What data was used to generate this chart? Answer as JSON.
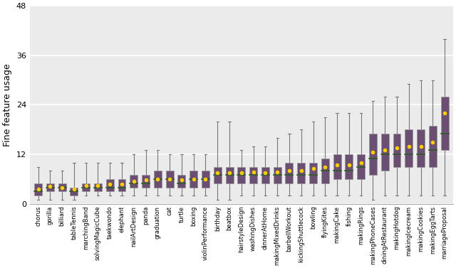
{
  "categories": [
    "chorus",
    "gorilla",
    "billiard",
    "tableTennis",
    "marchingBand",
    "solvingMagicCube",
    "taekwondo",
    "elephant",
    "nailArtDesign",
    "panda",
    "graduation",
    "cat",
    "turtle",
    "boxing",
    "violinPerformance",
    "birthday",
    "beatbox",
    "hairstyleDesign",
    "washingDishes",
    "dinnerAtHome",
    "makingMixedDrinks",
    "barbellWorkout",
    "kickingShuttlecock",
    "bowling",
    "flyingKites",
    "makingCake",
    "fishing",
    "makingRings",
    "makingPhoneCases",
    "diningAtRestaurant",
    "makingHotdog",
    "makingIcecream",
    "makingCookies",
    "makingEggTarts",
    "marriageProposal"
  ],
  "box_data": [
    {
      "min": 1,
      "q1": 2,
      "median": 3,
      "q3": 5,
      "max": 9,
      "mean": 3.5
    },
    {
      "min": 1,
      "q1": 3,
      "median": 4,
      "q3": 5,
      "max": 8,
      "mean": 4.2
    },
    {
      "min": 1,
      "q1": 3,
      "median": 4,
      "q3": 5,
      "max": 8,
      "mean": 4.0
    },
    {
      "min": 1,
      "q1": 2,
      "median": 3,
      "q3": 4,
      "max": 10,
      "mean": 3.5
    },
    {
      "min": 2,
      "q1": 3,
      "median": 4,
      "q3": 5,
      "max": 10,
      "mean": 4.5
    },
    {
      "min": 2,
      "q1": 3,
      "median": 4,
      "q3": 5,
      "max": 10,
      "mean": 4.5
    },
    {
      "min": 2,
      "q1": 3,
      "median": 4,
      "q3": 6,
      "max": 10,
      "mean": 4.8
    },
    {
      "min": 2,
      "q1": 3,
      "median": 4,
      "q3": 6,
      "max": 10,
      "mean": 4.8
    },
    {
      "min": 2,
      "q1": 4,
      "median": 5,
      "q3": 7,
      "max": 12,
      "mean": 5.5
    },
    {
      "min": 2,
      "q1": 4,
      "median": 5,
      "q3": 7,
      "max": 13,
      "mean": 5.8
    },
    {
      "min": 2,
      "q1": 4,
      "median": 6,
      "q3": 8,
      "max": 13,
      "mean": 6.0
    },
    {
      "min": 2,
      "q1": 4,
      "median": 6,
      "q3": 8,
      "max": 12,
      "mean": 6.0
    },
    {
      "min": 2,
      "q1": 4,
      "median": 5,
      "q3": 7,
      "max": 12,
      "mean": 5.8
    },
    {
      "min": 2,
      "q1": 4,
      "median": 6,
      "q3": 8,
      "max": 12,
      "mean": 6.0
    },
    {
      "min": 2,
      "q1": 4,
      "median": 6,
      "q3": 8,
      "max": 12,
      "mean": 6.0
    },
    {
      "min": 1,
      "q1": 5,
      "median": 7,
      "q3": 9,
      "max": 20,
      "mean": 7.5
    },
    {
      "min": 1,
      "q1": 5,
      "median": 7,
      "q3": 9,
      "max": 20,
      "mean": 7.5
    },
    {
      "min": 2,
      "q1": 5,
      "median": 7,
      "q3": 9,
      "max": 13,
      "mean": 7.5
    },
    {
      "min": 2,
      "q1": 5,
      "median": 7,
      "q3": 9,
      "max": 14,
      "mean": 7.8
    },
    {
      "min": 2,
      "q1": 5,
      "median": 7,
      "q3": 9,
      "max": 14,
      "mean": 7.5
    },
    {
      "min": 2,
      "q1": 5,
      "median": 7,
      "q3": 9,
      "max": 16,
      "mean": 7.8
    },
    {
      "min": 2,
      "q1": 5,
      "median": 7,
      "q3": 10,
      "max": 17,
      "mean": 8.0
    },
    {
      "min": 2,
      "q1": 5,
      "median": 7,
      "q3": 10,
      "max": 18,
      "mean": 8.0
    },
    {
      "min": 2,
      "q1": 5,
      "median": 7,
      "q3": 10,
      "max": 20,
      "mean": 8.5
    },
    {
      "min": 2,
      "q1": 5,
      "median": 8,
      "q3": 11,
      "max": 21,
      "mean": 9.0
    },
    {
      "min": 2,
      "q1": 6,
      "median": 8,
      "q3": 12,
      "max": 22,
      "mean": 9.5
    },
    {
      "min": 2,
      "q1": 6,
      "median": 8,
      "q3": 12,
      "max": 22,
      "mean": 9.5
    },
    {
      "min": 2,
      "q1": 6,
      "median": 9,
      "q3": 12,
      "max": 22,
      "mean": 10.0
    },
    {
      "min": 1,
      "q1": 7,
      "median": 11,
      "q3": 17,
      "max": 25,
      "mean": 12.5
    },
    {
      "min": 2,
      "q1": 8,
      "median": 12,
      "q3": 17,
      "max": 26,
      "mean": 13.0
    },
    {
      "min": 2,
      "q1": 9,
      "median": 12,
      "q3": 17,
      "max": 26,
      "mean": 13.5
    },
    {
      "min": 2,
      "q1": 9,
      "median": 12,
      "q3": 18,
      "max": 29,
      "mean": 14.0
    },
    {
      "min": 2,
      "q1": 9,
      "median": 12,
      "q3": 18,
      "max": 30,
      "mean": 14.0
    },
    {
      "min": 2,
      "q1": 9,
      "median": 13,
      "q3": 19,
      "max": 30,
      "mean": 15.0
    },
    {
      "min": 2,
      "q1": 13,
      "median": 17,
      "q3": 26,
      "max": 40,
      "mean": 22.0
    }
  ],
  "box_color": "#6b4f72",
  "median_color": "#2d5a27",
  "mean_color": "#ffcc00",
  "whisker_color": "#777777",
  "ylabel": "Fine feature usage",
  "ylim": [
    0,
    48
  ],
  "yticks": [
    0,
    12,
    24,
    36,
    48
  ],
  "bg_color": "#ebebeb",
  "grid_color": "#ffffff",
  "figsize": [
    6.4,
    3.77
  ],
  "dpi": 100
}
